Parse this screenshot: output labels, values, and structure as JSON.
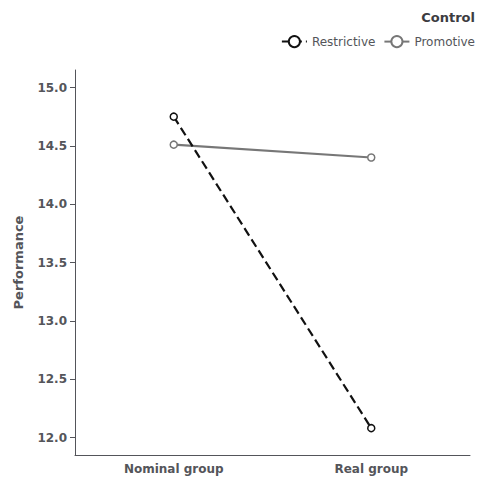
{
  "chart_data": {
    "type": "line",
    "categories": [
      "Nominal group",
      "Real group"
    ],
    "series": [
      {
        "name": "Restrictive",
        "color": "#111111",
        "line_style": "dashed",
        "values": [
          14.75,
          12.08
        ]
      },
      {
        "name": "Promotive",
        "color": "#777777",
        "line_style": "solid",
        "values": [
          14.51,
          14.4
        ]
      }
    ],
    "marker": "circle",
    "ylabel": "Performance",
    "ylim": [
      11.85,
      15.15
    ],
    "yticks": [
      {
        "value": 12,
        "label": "12.0"
      },
      12.5,
      {
        "value": 13,
        "label": "13.0"
      },
      13.5,
      {
        "value": 14,
        "label": "14.0"
      },
      14.5,
      {
        "value": 15,
        "label": "15.0"
      }
    ],
    "grid": false,
    "legend": "upper right",
    "legend_title": "Control"
  }
}
